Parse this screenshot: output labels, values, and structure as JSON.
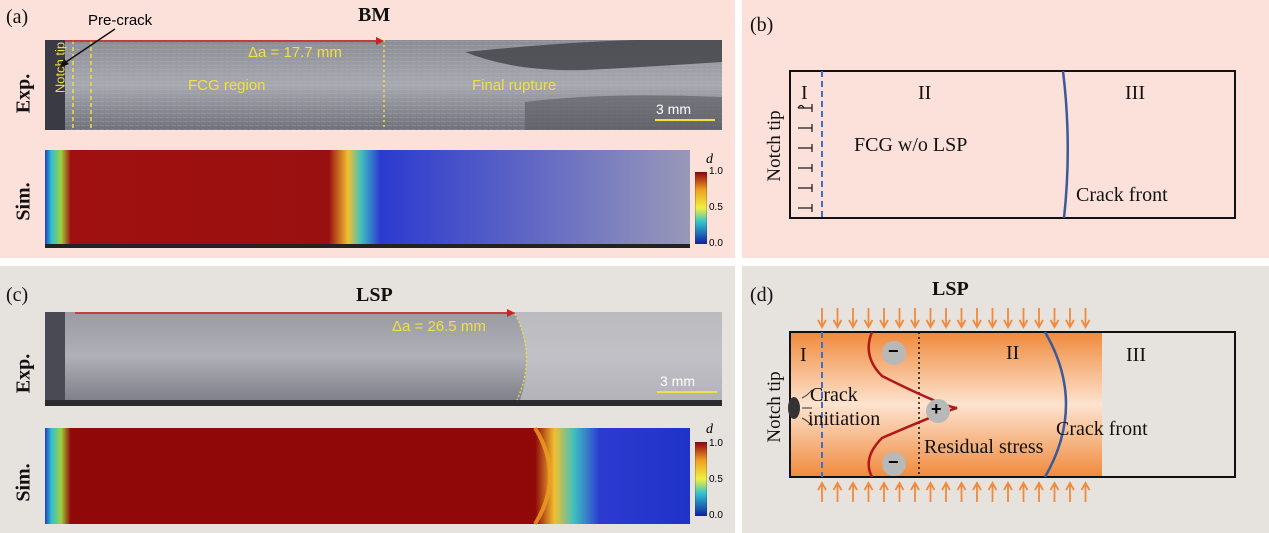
{
  "panel_a": {
    "label": "(a)",
    "title": "BM",
    "row_exp": "Exp.",
    "row_sim": "Sim.",
    "precrack": "Pre-crack",
    "notch_tip": "Notch tip",
    "delta_a": "Δa = 17.7 mm",
    "fcg_region": "FCG region",
    "final_rupture": "Final rupture",
    "scale": "3 mm",
    "colorbar": {
      "var": "d",
      "max": "1.0",
      "mid": "0.5",
      "min": "0.0"
    }
  },
  "panel_b": {
    "label": "(b)",
    "notch_tip": "Notch tip",
    "region1": "I",
    "region2": "II",
    "region3": "III",
    "fcg_text": "FCG w/o LSP",
    "crack_front": "Crack front"
  },
  "panel_c": {
    "label": "(c)",
    "title": "LSP",
    "row_exp": "Exp.",
    "row_sim": "Sim.",
    "delta_a": "Δa = 26.5 mm",
    "scale": "3 mm",
    "colorbar": {
      "var": "d",
      "max": "1.0",
      "mid": "0.5",
      "min": "0.0"
    }
  },
  "panel_d": {
    "label": "(d)",
    "title": "LSP",
    "notch_tip": "Notch tip",
    "region1": "I",
    "region2": "II",
    "region3": "III",
    "crack_initiation_1": "Crack",
    "crack_initiation_2": "initiation",
    "residual_stress": "Residual stress",
    "crack_front": "Crack front",
    "minus": "−",
    "plus": "+"
  },
  "colors": {
    "panel_b_bg": "#fbe1da",
    "panel_d_bg": "#e6e2de",
    "orange": "#f08a3c",
    "crack_front": "#3a5a9a",
    "stress_curve": "#b01818"
  }
}
